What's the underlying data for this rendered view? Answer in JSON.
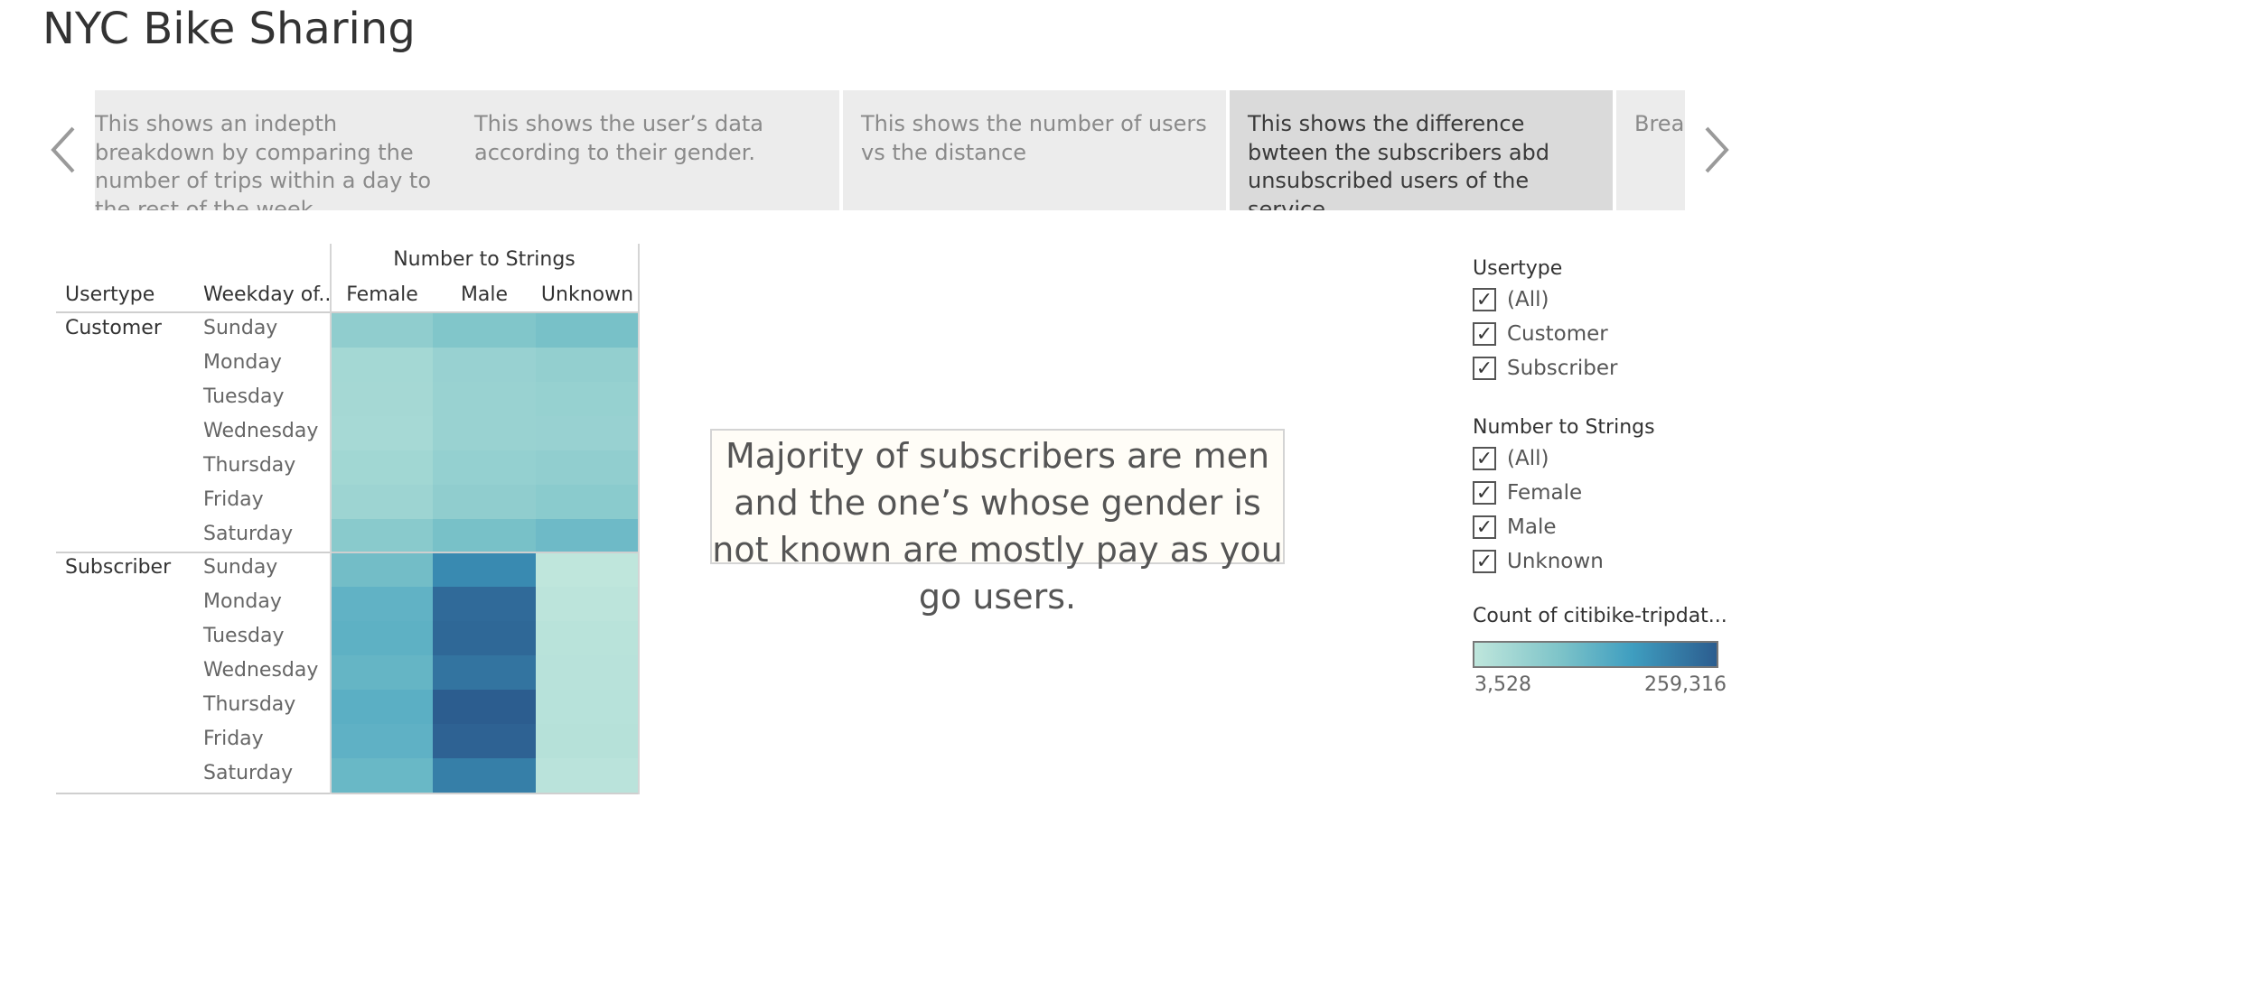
{
  "dashboard": {
    "title": "NYC Bike Sharing"
  },
  "story": {
    "points": [
      {
        "caption": "This shows an indepth breakdown by comparing the number of trips within a day to the rest of the week.",
        "active": false
      },
      {
        "caption": "This shows the user’s data according to their gender.",
        "active": false
      },
      {
        "caption": "This shows the number of users vs the distance",
        "active": false
      },
      {
        "caption": "This shows the difference bwteen the subscribers abd unsubscribed users of the service",
        "active": true
      },
      {
        "caption": "Breakdown by gender",
        "active": false
      }
    ],
    "prev_icon": "chevron-left-icon",
    "next_icon": "chevron-right-icon"
  },
  "crosstab": {
    "column_group_header": "Number to Strings",
    "row_headers": [
      "Usertype",
      "Weekday of.."
    ],
    "columns": [
      "Female",
      "Male",
      "Unknown"
    ],
    "groups": [
      {
        "name": "Customer",
        "days": [
          "Sunday",
          "Monday",
          "Tuesday",
          "Wednesday",
          "Thursday",
          "Friday",
          "Saturday"
        ]
      },
      {
        "name": "Subscriber",
        "days": [
          "Sunday",
          "Monday",
          "Tuesday",
          "Wednesday",
          "Thursday",
          "Friday",
          "Saturday"
        ]
      }
    ]
  },
  "chart_data": {
    "type": "heatmap",
    "title": "",
    "x": [
      "Female",
      "Male",
      "Unknown"
    ],
    "y_groups": [
      "Customer",
      "Subscriber"
    ],
    "y": [
      "Sunday",
      "Monday",
      "Tuesday",
      "Wednesday",
      "Thursday",
      "Friday",
      "Saturday"
    ],
    "legend_title": "Count of citibike-tripdat...",
    "color_range": [
      3528,
      259316
    ],
    "color_low": "#bfe6dc",
    "color_high": "#2c5d8f",
    "values": {
      "Customer": {
        "Female": [
          20000,
          9000,
          8500,
          8000,
          10000,
          12000,
          25000
        ],
        "Male": [
          32000,
          15000,
          14000,
          14000,
          17000,
          20000,
          40000
        ],
        "Unknown": [
          40000,
          18000,
          16000,
          15000,
          19000,
          24000,
          50000
        ]
      },
      "Subscriber": {
        "Female": [
          45000,
          65000,
          68000,
          60000,
          72000,
          67000,
          55000
        ],
        "Male": [
          150000,
          225000,
          230000,
          200000,
          259316,
          245000,
          175000
        ],
        "Unknown": [
          3528,
          3600,
          3800,
          3900,
          4000,
          4100,
          3700
        ]
      }
    }
  },
  "annotation": {
    "text": "Majority of subscribers are men and the one’s whose gender is not known are mostly pay as you go users."
  },
  "filters": [
    {
      "title": "Usertype",
      "options": [
        "(All)",
        "Customer",
        "Subscriber"
      ]
    },
    {
      "title": "Number to Strings",
      "options": [
        "(All)",
        "Female",
        "Male",
        "Unknown"
      ]
    }
  ],
  "legend": {
    "title": "Count of citibike-tripdat...",
    "min_label": "3,528",
    "max_label": "259,316"
  },
  "checkbox_glyph": "✓"
}
